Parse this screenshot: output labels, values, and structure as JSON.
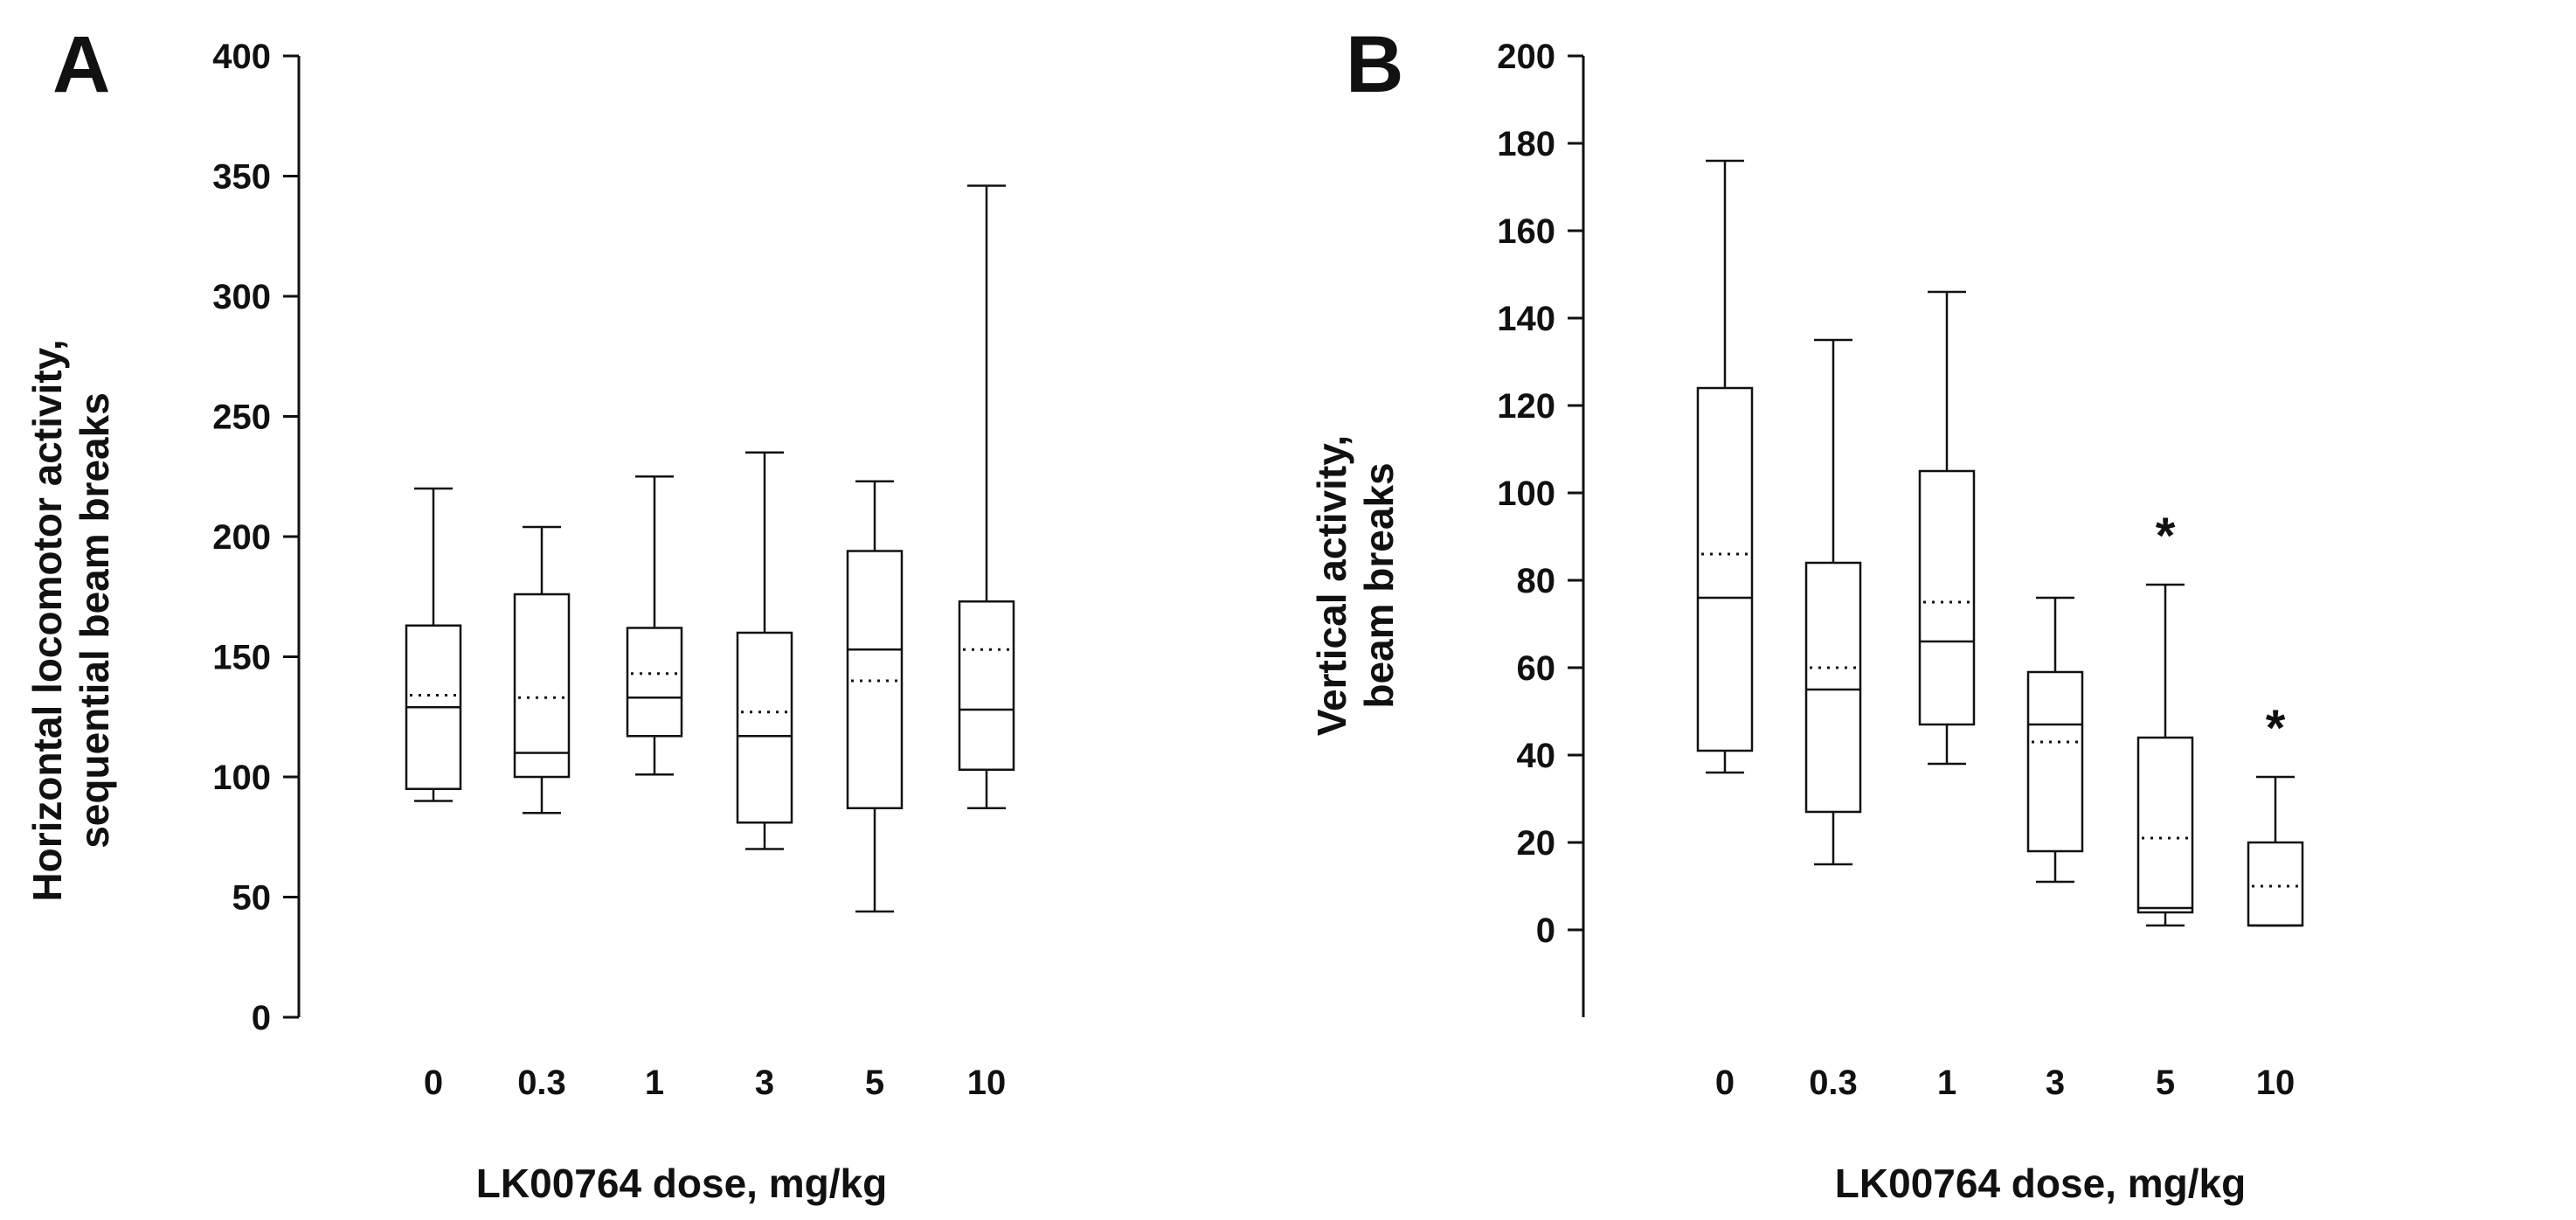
{
  "chart_data": [
    {
      "type": "boxplot",
      "panel_label": "A",
      "title": "",
      "xlabel": "LK00764 dose, mg/kg",
      "ylabel_lines": [
        "Horizontal locomotor activity,",
        "sequential beam breaks"
      ],
      "ylim": [
        0,
        400
      ],
      "yticks": [
        0,
        50,
        100,
        150,
        200,
        250,
        300,
        350,
        400
      ],
      "categories": [
        "0",
        "0.3",
        "1",
        "3",
        "5",
        "10"
      ],
      "boxes": [
        {
          "category": "0",
          "whisker_low": 90,
          "q1": 95,
          "median": 129,
          "mean": 134,
          "q3": 163,
          "whisker_high": 220,
          "significant": false
        },
        {
          "category": "0.3",
          "whisker_low": 85,
          "q1": 100,
          "median": 110,
          "mean": 133,
          "q3": 176,
          "whisker_high": 204,
          "significant": false
        },
        {
          "category": "1",
          "whisker_low": 101,
          "q1": 117,
          "median": 133,
          "mean": 143,
          "q3": 162,
          "whisker_high": 225,
          "significant": false
        },
        {
          "category": "3",
          "whisker_low": 70,
          "q1": 81,
          "median": 117,
          "mean": 127,
          "q3": 160,
          "whisker_high": 235,
          "significant": false
        },
        {
          "category": "5",
          "whisker_low": 44,
          "q1": 87,
          "median": 153,
          "mean": 140,
          "q3": 194,
          "whisker_high": 223,
          "significant": false
        },
        {
          "category": "10",
          "whisker_low": 87,
          "q1": 103,
          "median": 128,
          "mean": 153,
          "q3": 173,
          "whisker_high": 346,
          "significant": false
        }
      ],
      "annotations": []
    },
    {
      "type": "boxplot",
      "panel_label": "B",
      "title": "",
      "xlabel": "LK00764 dose, mg/kg",
      "ylabel_lines": [
        "Vertical activity,",
        "beam breaks"
      ],
      "ylim": [
        -20,
        200
      ],
      "yticks": [
        0,
        20,
        40,
        60,
        80,
        100,
        120,
        140,
        160,
        180,
        200
      ],
      "categories": [
        "0",
        "0.3",
        "1",
        "3",
        "5",
        "10"
      ],
      "boxes": [
        {
          "category": "0",
          "whisker_low": 36,
          "q1": 41,
          "median": 76,
          "mean": 86,
          "q3": 124,
          "whisker_high": 176,
          "significant": false
        },
        {
          "category": "0.3",
          "whisker_low": 15,
          "q1": 27,
          "median": 55,
          "mean": 60,
          "q3": 84,
          "whisker_high": 135,
          "significant": false
        },
        {
          "category": "1",
          "whisker_low": 38,
          "q1": 47,
          "median": 66,
          "mean": 75,
          "q3": 105,
          "whisker_high": 146,
          "significant": false
        },
        {
          "category": "3",
          "whisker_low": 11,
          "q1": 18,
          "median": 47,
          "mean": 43,
          "q3": 59,
          "whisker_high": 76,
          "significant": false
        },
        {
          "category": "5",
          "whisker_low": 1,
          "q1": 4,
          "median": 5,
          "mean": 21,
          "q3": 44,
          "whisker_high": 79,
          "significant": true
        },
        {
          "category": "10",
          "whisker_low": 1,
          "q1": 1,
          "median": 1,
          "mean": 10,
          "q3": 20,
          "whisker_high": 35,
          "significant": true
        }
      ],
      "annotations": [
        "*",
        "*"
      ]
    }
  ]
}
